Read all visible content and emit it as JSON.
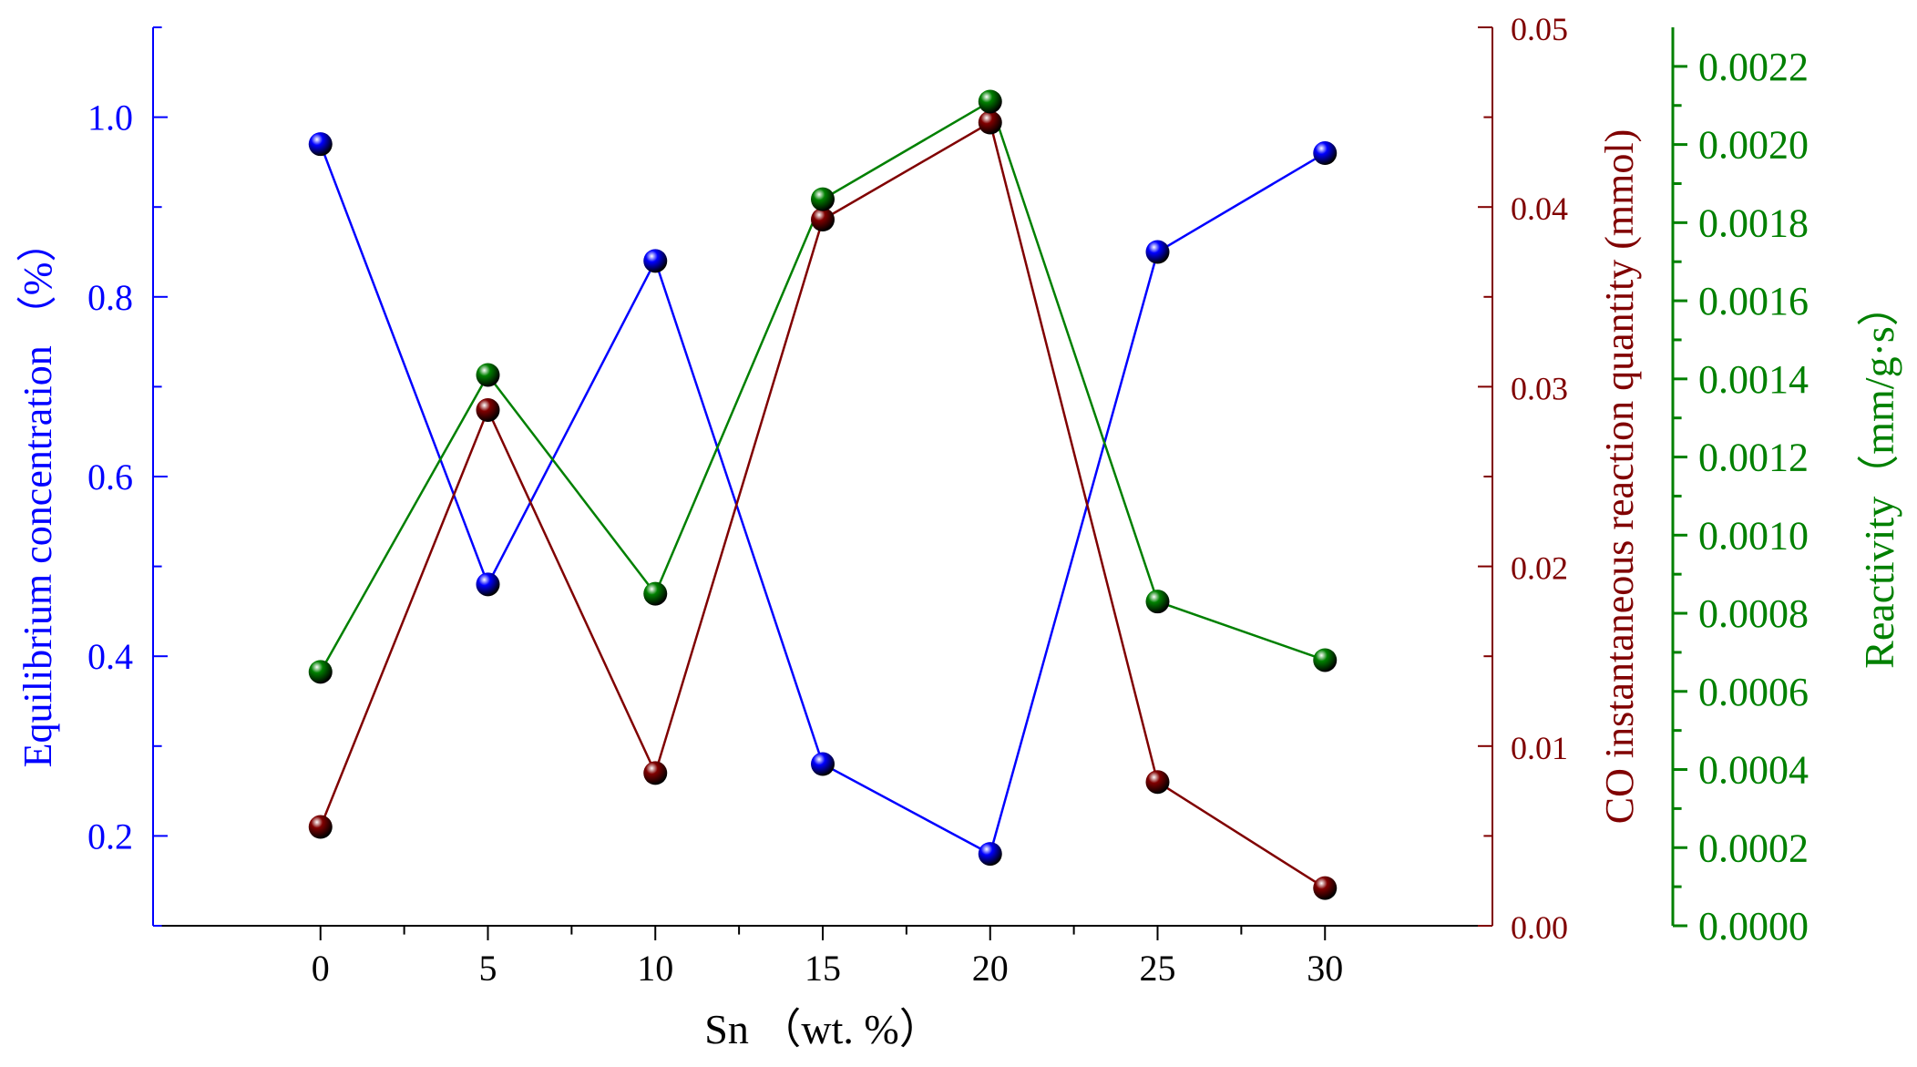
{
  "chart_data": {
    "type": "line",
    "x": [
      0,
      5,
      10,
      15,
      20,
      25,
      30
    ],
    "xlabel": "Sn （wt. %）",
    "xlim": [
      -5,
      35
    ],
    "xticks": [
      "0",
      "5",
      "10",
      "15",
      "20",
      "25",
      "30"
    ],
    "axes": {
      "left": {
        "label": "Equilibrium concentration （%）",
        "ylim": [
          0.1,
          1.1
        ],
        "ticks": [
          "0.2",
          "0.4",
          "0.6",
          "0.8",
          "1.0"
        ],
        "color": "#0000ff"
      },
      "right1": {
        "label": "CO instantaneous reaction quantity (mmol)",
        "ylim": [
          0.0,
          0.05
        ],
        "ticks": [
          "0.00",
          "0.01",
          "0.02",
          "0.03",
          "0.04",
          "0.05"
        ],
        "color": "#800000"
      },
      "right2": {
        "label": "Reactivity（mm/g·s）",
        "ylim": [
          0.0,
          0.0023
        ],
        "ticks": [
          "0.0000",
          "0.0002",
          "0.0004",
          "0.0006",
          "0.0008",
          "0.0010",
          "0.0012",
          "0.0014",
          "0.0016",
          "0.0018",
          "0.0020",
          "0.0022"
        ],
        "color": "#008000"
      }
    },
    "series": [
      {
        "axis": "left",
        "color": "#0000ff",
        "values": [
          0.97,
          0.48,
          0.84,
          0.28,
          0.18,
          0.85,
          0.96
        ]
      },
      {
        "axis": "right1",
        "color": "#800000",
        "values": [
          0.0055,
          0.0287,
          0.0085,
          0.0393,
          0.0447,
          0.008,
          0.0021
        ]
      },
      {
        "axis": "right2",
        "color": "#008000",
        "values": [
          0.00065,
          0.00141,
          0.00085,
          0.00186,
          0.00211,
          0.00083,
          0.00068
        ]
      }
    ],
    "grid": false,
    "legend": "none"
  }
}
